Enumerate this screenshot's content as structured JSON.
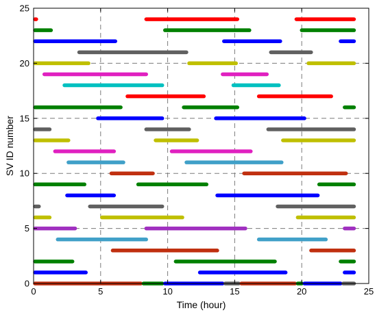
{
  "chart_data": {
    "type": "line",
    "title": "",
    "xlabel": "Time (hour)",
    "ylabel": "SV ID number",
    "xlim": [
      0,
      25
    ],
    "ylim": [
      0,
      25
    ],
    "x_ticks": [
      0,
      5,
      10,
      15,
      20,
      25
    ],
    "y_ticks": [
      0,
      5,
      10,
      15,
      20,
      25
    ],
    "grid": true,
    "grid_style": "dashed",
    "segments": [
      {
        "sv": 24,
        "start": 0.0,
        "end": 0.3,
        "color": "#ff0000"
      },
      {
        "sv": 24,
        "start": 8.3,
        "end": 15.3,
        "color": "#ff0000"
      },
      {
        "sv": 24,
        "start": 19.5,
        "end": 24.0,
        "color": "#ff0000"
      },
      {
        "sv": 23,
        "start": 0.0,
        "end": 1.4,
        "color": "#008000"
      },
      {
        "sv": 23,
        "start": 9.7,
        "end": 16.2,
        "color": "#008000"
      },
      {
        "sv": 23,
        "start": 19.9,
        "end": 24.0,
        "color": "#008000"
      },
      {
        "sv": 22,
        "start": 0.0,
        "end": 6.2,
        "color": "#0000ff"
      },
      {
        "sv": 22,
        "start": 14.1,
        "end": 18.5,
        "color": "#0000ff"
      },
      {
        "sv": 22,
        "start": 22.8,
        "end": 24.0,
        "color": "#0000ff"
      },
      {
        "sv": 21,
        "start": 3.3,
        "end": 11.5,
        "color": "#606060"
      },
      {
        "sv": 21,
        "start": 17.6,
        "end": 20.8,
        "color": "#606060"
      },
      {
        "sv": 20,
        "start": 0.0,
        "end": 4.2,
        "color": "#bfbf00"
      },
      {
        "sv": 20,
        "start": 11.5,
        "end": 15.2,
        "color": "#bfbf00"
      },
      {
        "sv": 20,
        "start": 20.4,
        "end": 24.0,
        "color": "#bfbf00"
      },
      {
        "sv": 19,
        "start": 0.7,
        "end": 8.5,
        "color": "#e020c0"
      },
      {
        "sv": 19,
        "start": 14.0,
        "end": 17.5,
        "color": "#e020c0"
      },
      {
        "sv": 18,
        "start": 2.2,
        "end": 9.7,
        "color": "#00c0c0"
      },
      {
        "sv": 18,
        "start": 14.8,
        "end": 18.4,
        "color": "#00c0c0"
      },
      {
        "sv": 17,
        "start": 6.9,
        "end": 12.8,
        "color": "#ff0000"
      },
      {
        "sv": 17,
        "start": 16.7,
        "end": 22.3,
        "color": "#ff0000"
      },
      {
        "sv": 16,
        "start": 0.0,
        "end": 6.6,
        "color": "#008000"
      },
      {
        "sv": 16,
        "start": 11.1,
        "end": 15.3,
        "color": "#008000"
      },
      {
        "sv": 16,
        "start": 23.1,
        "end": 24.0,
        "color": "#008000"
      },
      {
        "sv": 15,
        "start": 4.7,
        "end": 9.7,
        "color": "#0000ff"
      },
      {
        "sv": 15,
        "start": 13.5,
        "end": 20.3,
        "color": "#0000ff"
      },
      {
        "sv": 14,
        "start": 0.0,
        "end": 1.3,
        "color": "#606060"
      },
      {
        "sv": 14,
        "start": 8.3,
        "end": 11.7,
        "color": "#606060"
      },
      {
        "sv": 14,
        "start": 17.4,
        "end": 24.0,
        "color": "#606060"
      },
      {
        "sv": 13,
        "start": 0.0,
        "end": 2.7,
        "color": "#bfbf00"
      },
      {
        "sv": 13,
        "start": 9.0,
        "end": 12.3,
        "color": "#bfbf00"
      },
      {
        "sv": 13,
        "start": 18.5,
        "end": 24.0,
        "color": "#bfbf00"
      },
      {
        "sv": 12,
        "start": 1.5,
        "end": 6.1,
        "color": "#e020c0"
      },
      {
        "sv": 12,
        "start": 10.2,
        "end": 16.3,
        "color": "#e020c0"
      },
      {
        "sv": 11,
        "start": 2.5,
        "end": 6.8,
        "color": "#40a0c8"
      },
      {
        "sv": 11,
        "start": 11.3,
        "end": 18.6,
        "color": "#40a0c8"
      },
      {
        "sv": 10,
        "start": 5.7,
        "end": 9.0,
        "color": "#c03010"
      },
      {
        "sv": 10,
        "start": 15.6,
        "end": 23.4,
        "color": "#c03010"
      },
      {
        "sv": 9,
        "start": 0.0,
        "end": 3.9,
        "color": "#008000"
      },
      {
        "sv": 9,
        "start": 7.7,
        "end": 13.0,
        "color": "#008000"
      },
      {
        "sv": 9,
        "start": 21.2,
        "end": 24.0,
        "color": "#008000"
      },
      {
        "sv": 8,
        "start": 2.4,
        "end": 6.1,
        "color": "#0000ff"
      },
      {
        "sv": 8,
        "start": 13.6,
        "end": 21.3,
        "color": "#0000ff"
      },
      {
        "sv": 7,
        "start": 0.0,
        "end": 0.5,
        "color": "#606060"
      },
      {
        "sv": 7,
        "start": 4.1,
        "end": 9.7,
        "color": "#606060"
      },
      {
        "sv": 7,
        "start": 18.1,
        "end": 24.0,
        "color": "#606060"
      },
      {
        "sv": 6,
        "start": 0.0,
        "end": 1.3,
        "color": "#bfbf00"
      },
      {
        "sv": 6,
        "start": 5.0,
        "end": 11.2,
        "color": "#bfbf00"
      },
      {
        "sv": 6,
        "start": 19.6,
        "end": 24.0,
        "color": "#bfbf00"
      },
      {
        "sv": 5,
        "start": 0.0,
        "end": 3.2,
        "color": "#a030c0"
      },
      {
        "sv": 5,
        "start": 8.3,
        "end": 15.9,
        "color": "#a030c0"
      },
      {
        "sv": 5,
        "start": 23.1,
        "end": 24.0,
        "color": "#a030c0"
      },
      {
        "sv": 4,
        "start": 1.7,
        "end": 8.5,
        "color": "#40a0c8"
      },
      {
        "sv": 4,
        "start": 16.7,
        "end": 21.9,
        "color": "#40a0c8"
      },
      {
        "sv": 3,
        "start": 5.8,
        "end": 13.8,
        "color": "#c03010"
      },
      {
        "sv": 3,
        "start": 20.6,
        "end": 24.0,
        "color": "#c03010"
      },
      {
        "sv": 2,
        "start": 0.0,
        "end": 3.0,
        "color": "#008000"
      },
      {
        "sv": 2,
        "start": 10.5,
        "end": 18.1,
        "color": "#008000"
      },
      {
        "sv": 2,
        "start": 22.8,
        "end": 24.0,
        "color": "#008000"
      },
      {
        "sv": 1,
        "start": 0.0,
        "end": 4.0,
        "color": "#0000ff"
      },
      {
        "sv": 1,
        "start": 12.3,
        "end": 18.9,
        "color": "#0000ff"
      },
      {
        "sv": 1,
        "start": 23.1,
        "end": 24.0,
        "color": "#0000ff"
      },
      {
        "sv": 0,
        "start": 0.0,
        "end": 8.1,
        "color": "#c03010"
      },
      {
        "sv": 0,
        "start": 8.1,
        "end": 9.7,
        "color": "#008000"
      },
      {
        "sv": 0,
        "start": 9.7,
        "end": 14.2,
        "color": "#0000ff"
      },
      {
        "sv": 0,
        "start": 14.2,
        "end": 15.4,
        "color": "#606060"
      },
      {
        "sv": 0,
        "start": 15.4,
        "end": 19.6,
        "color": "#c03010"
      },
      {
        "sv": 0,
        "start": 19.6,
        "end": 20.1,
        "color": "#008000"
      },
      {
        "sv": 0,
        "start": 20.1,
        "end": 23.0,
        "color": "#0000ff"
      },
      {
        "sv": 0,
        "start": 23.0,
        "end": 24.0,
        "color": "#606060"
      }
    ]
  }
}
